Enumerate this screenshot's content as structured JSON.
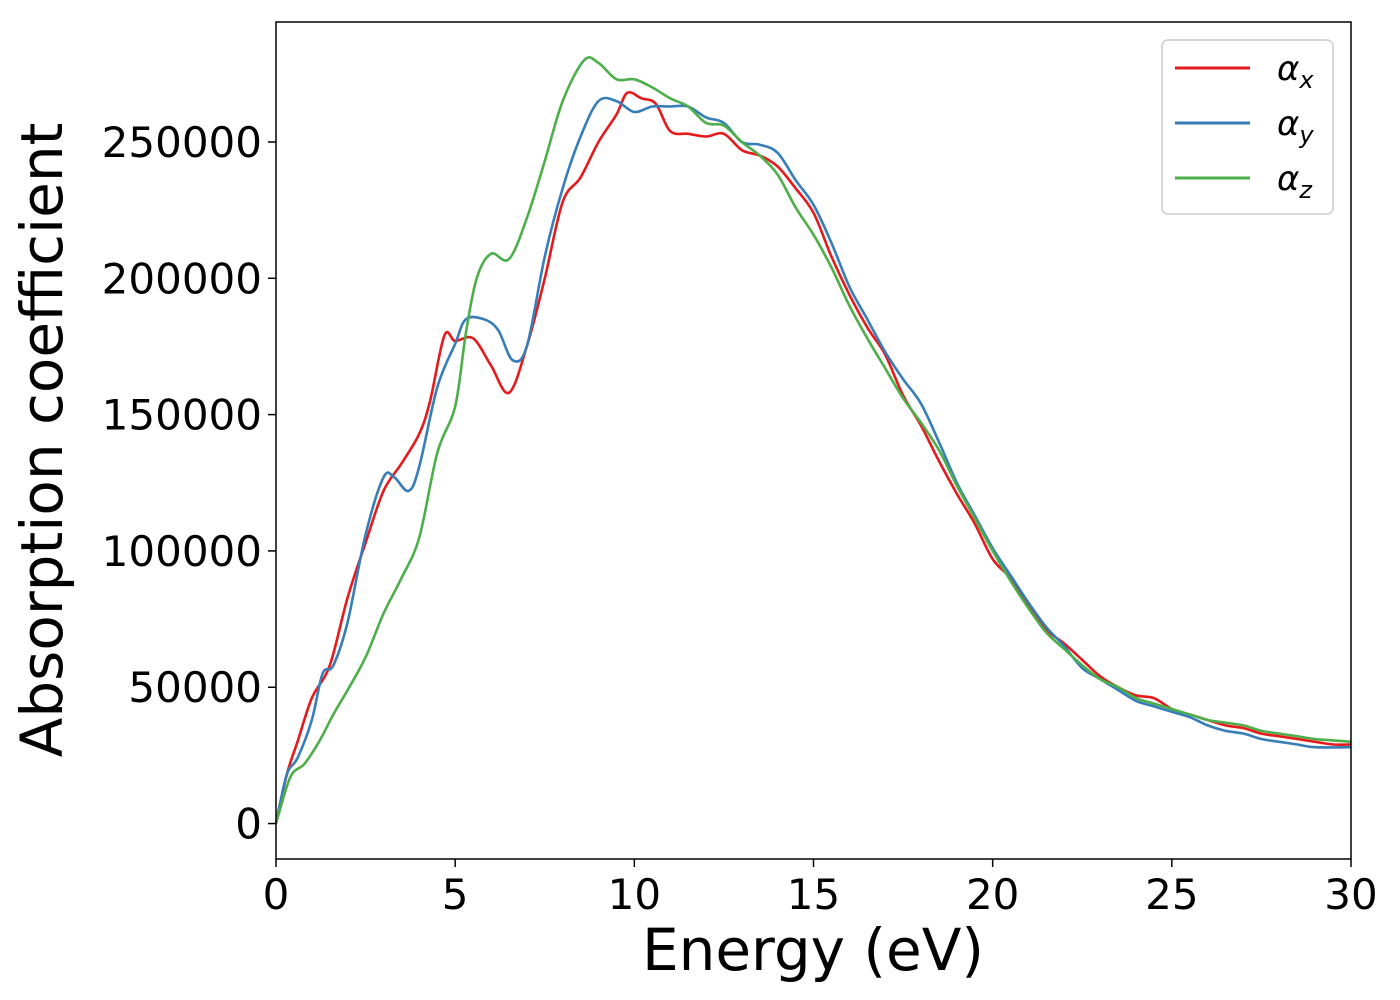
{
  "chart_data": {
    "type": "line",
    "title": "",
    "xlabel": "Energy (eV)",
    "ylabel": "Absorption coefficient",
    "xlim": [
      0,
      30
    ],
    "ylim": [
      -13000,
      294000
    ],
    "xticks": [
      0,
      5,
      10,
      15,
      20,
      25,
      30
    ],
    "yticks": [
      0,
      50000,
      100000,
      150000,
      200000,
      250000
    ],
    "grid": false,
    "legend_position": "top-right",
    "series": [
      {
        "name": "α",
        "subscript": "x",
        "color": "#e41a1c",
        "points": [
          [
            0,
            0
          ],
          [
            0.3,
            18000
          ],
          [
            0.6,
            30000
          ],
          [
            1,
            46000
          ],
          [
            1.5,
            58000
          ],
          [
            2,
            83000
          ],
          [
            2.5,
            103000
          ],
          [
            3,
            122000
          ],
          [
            3.5,
            132000
          ],
          [
            4,
            143000
          ],
          [
            4.3,
            155000
          ],
          [
            4.7,
            179000
          ],
          [
            5,
            177000
          ],
          [
            5.5,
            178000
          ],
          [
            6,
            168000
          ],
          [
            6.5,
            158000
          ],
          [
            7,
            175000
          ],
          [
            7.5,
            200000
          ],
          [
            8,
            228000
          ],
          [
            8.5,
            237000
          ],
          [
            9,
            250000
          ],
          [
            9.5,
            260000
          ],
          [
            9.8,
            268000
          ],
          [
            10.2,
            266000
          ],
          [
            10.6,
            264000
          ],
          [
            11,
            254000
          ],
          [
            11.5,
            253000
          ],
          [
            12,
            252000
          ],
          [
            12.5,
            253000
          ],
          [
            13,
            247000
          ],
          [
            13.5,
            245000
          ],
          [
            14,
            241000
          ],
          [
            14.5,
            233000
          ],
          [
            15,
            224000
          ],
          [
            15.5,
            208000
          ],
          [
            16,
            194000
          ],
          [
            16.5,
            182000
          ],
          [
            17,
            172000
          ],
          [
            17.5,
            157000
          ],
          [
            18,
            146000
          ],
          [
            18.5,
            133000
          ],
          [
            19,
            121000
          ],
          [
            19.5,
            110000
          ],
          [
            20,
            97000
          ],
          [
            20.5,
            90000
          ],
          [
            21,
            80000
          ],
          [
            21.5,
            71000
          ],
          [
            22,
            66000
          ],
          [
            22.5,
            60000
          ],
          [
            23,
            54000
          ],
          [
            23.5,
            50000
          ],
          [
            24,
            47000
          ],
          [
            24.5,
            46000
          ],
          [
            25,
            42000
          ],
          [
            25.5,
            40000
          ],
          [
            26,
            38000
          ],
          [
            26.5,
            36000
          ],
          [
            27,
            35000
          ],
          [
            27.5,
            33000
          ],
          [
            28,
            32000
          ],
          [
            28.5,
            31000
          ],
          [
            29,
            30000
          ],
          [
            29.5,
            29000
          ],
          [
            30,
            29000
          ]
        ]
      },
      {
        "name": "α",
        "subscript": "y",
        "color": "#377eb8",
        "points": [
          [
            0,
            0
          ],
          [
            0.3,
            18000
          ],
          [
            0.6,
            24000
          ],
          [
            1,
            38000
          ],
          [
            1.3,
            55000
          ],
          [
            1.6,
            58000
          ],
          [
            2,
            74000
          ],
          [
            2.5,
            106000
          ],
          [
            3,
            127000
          ],
          [
            3.3,
            127000
          ],
          [
            3.7,
            122000
          ],
          [
            4,
            131000
          ],
          [
            4.5,
            160000
          ],
          [
            5,
            176000
          ],
          [
            5.3,
            185000
          ],
          [
            5.8,
            185000
          ],
          [
            6.2,
            181000
          ],
          [
            6.6,
            170000
          ],
          [
            7,
            175000
          ],
          [
            7.5,
            208000
          ],
          [
            8,
            233000
          ],
          [
            8.5,
            252000
          ],
          [
            9,
            265000
          ],
          [
            9.5,
            265000
          ],
          [
            10,
            261000
          ],
          [
            10.5,
            263000
          ],
          [
            11,
            263000
          ],
          [
            11.5,
            263000
          ],
          [
            12,
            259000
          ],
          [
            12.5,
            257000
          ],
          [
            13,
            250000
          ],
          [
            13.5,
            249000
          ],
          [
            14,
            246000
          ],
          [
            14.5,
            236000
          ],
          [
            15,
            227000
          ],
          [
            15.5,
            213000
          ],
          [
            16,
            197000
          ],
          [
            16.5,
            185000
          ],
          [
            17,
            173000
          ],
          [
            17.5,
            163000
          ],
          [
            18,
            154000
          ],
          [
            18.5,
            140000
          ],
          [
            19,
            125000
          ],
          [
            19.5,
            113000
          ],
          [
            20,
            101000
          ],
          [
            20.5,
            91000
          ],
          [
            21,
            81000
          ],
          [
            21.5,
            72000
          ],
          [
            22,
            65000
          ],
          [
            22.5,
            57000
          ],
          [
            23,
            53000
          ],
          [
            23.5,
            49000
          ],
          [
            24,
            45000
          ],
          [
            24.5,
            43000
          ],
          [
            25,
            41000
          ],
          [
            25.5,
            39000
          ],
          [
            26,
            36000
          ],
          [
            26.5,
            34000
          ],
          [
            27,
            33000
          ],
          [
            27.5,
            31000
          ],
          [
            28,
            30000
          ],
          [
            28.5,
            29000
          ],
          [
            29,
            28000
          ],
          [
            30,
            28000
          ]
        ]
      },
      {
        "name": "α",
        "subscript": "z",
        "color": "#4daf4a",
        "points": [
          [
            0,
            0
          ],
          [
            0.4,
            17000
          ],
          [
            0.8,
            22000
          ],
          [
            1.2,
            30000
          ],
          [
            1.6,
            40000
          ],
          [
            2,
            49000
          ],
          [
            2.5,
            61000
          ],
          [
            3,
            77000
          ],
          [
            3.5,
            90000
          ],
          [
            4,
            105000
          ],
          [
            4.5,
            136000
          ],
          [
            5,
            153000
          ],
          [
            5.3,
            180000
          ],
          [
            5.6,
            200000
          ],
          [
            6,
            209000
          ],
          [
            6.5,
            207000
          ],
          [
            7,
            222000
          ],
          [
            7.5,
            243000
          ],
          [
            8,
            265000
          ],
          [
            8.6,
            280000
          ],
          [
            9,
            279000
          ],
          [
            9.5,
            273000
          ],
          [
            10,
            273000
          ],
          [
            10.5,
            270000
          ],
          [
            11,
            266000
          ],
          [
            11.5,
            263000
          ],
          [
            12,
            257000
          ],
          [
            12.5,
            256000
          ],
          [
            13,
            250000
          ],
          [
            13.5,
            245000
          ],
          [
            14,
            238000
          ],
          [
            14.5,
            226000
          ],
          [
            15,
            216000
          ],
          [
            15.5,
            204000
          ],
          [
            16,
            190000
          ],
          [
            16.5,
            178000
          ],
          [
            17,
            167000
          ],
          [
            17.5,
            156000
          ],
          [
            18,
            147000
          ],
          [
            18.5,
            137000
          ],
          [
            19,
            124000
          ],
          [
            19.5,
            112000
          ],
          [
            20,
            100000
          ],
          [
            20.5,
            89000
          ],
          [
            21,
            79000
          ],
          [
            21.5,
            70000
          ],
          [
            22,
            64000
          ],
          [
            22.5,
            58000
          ],
          [
            23,
            53000
          ],
          [
            23.5,
            50000
          ],
          [
            24,
            46000
          ],
          [
            24.5,
            44000
          ],
          [
            25,
            42000
          ],
          [
            25.5,
            40000
          ],
          [
            26,
            38000
          ],
          [
            26.5,
            37000
          ],
          [
            27,
            36000
          ],
          [
            27.5,
            34000
          ],
          [
            28,
            33000
          ],
          [
            28.5,
            32000
          ],
          [
            29,
            31000
          ],
          [
            29.5,
            30500
          ],
          [
            30,
            30000
          ]
        ]
      }
    ]
  }
}
